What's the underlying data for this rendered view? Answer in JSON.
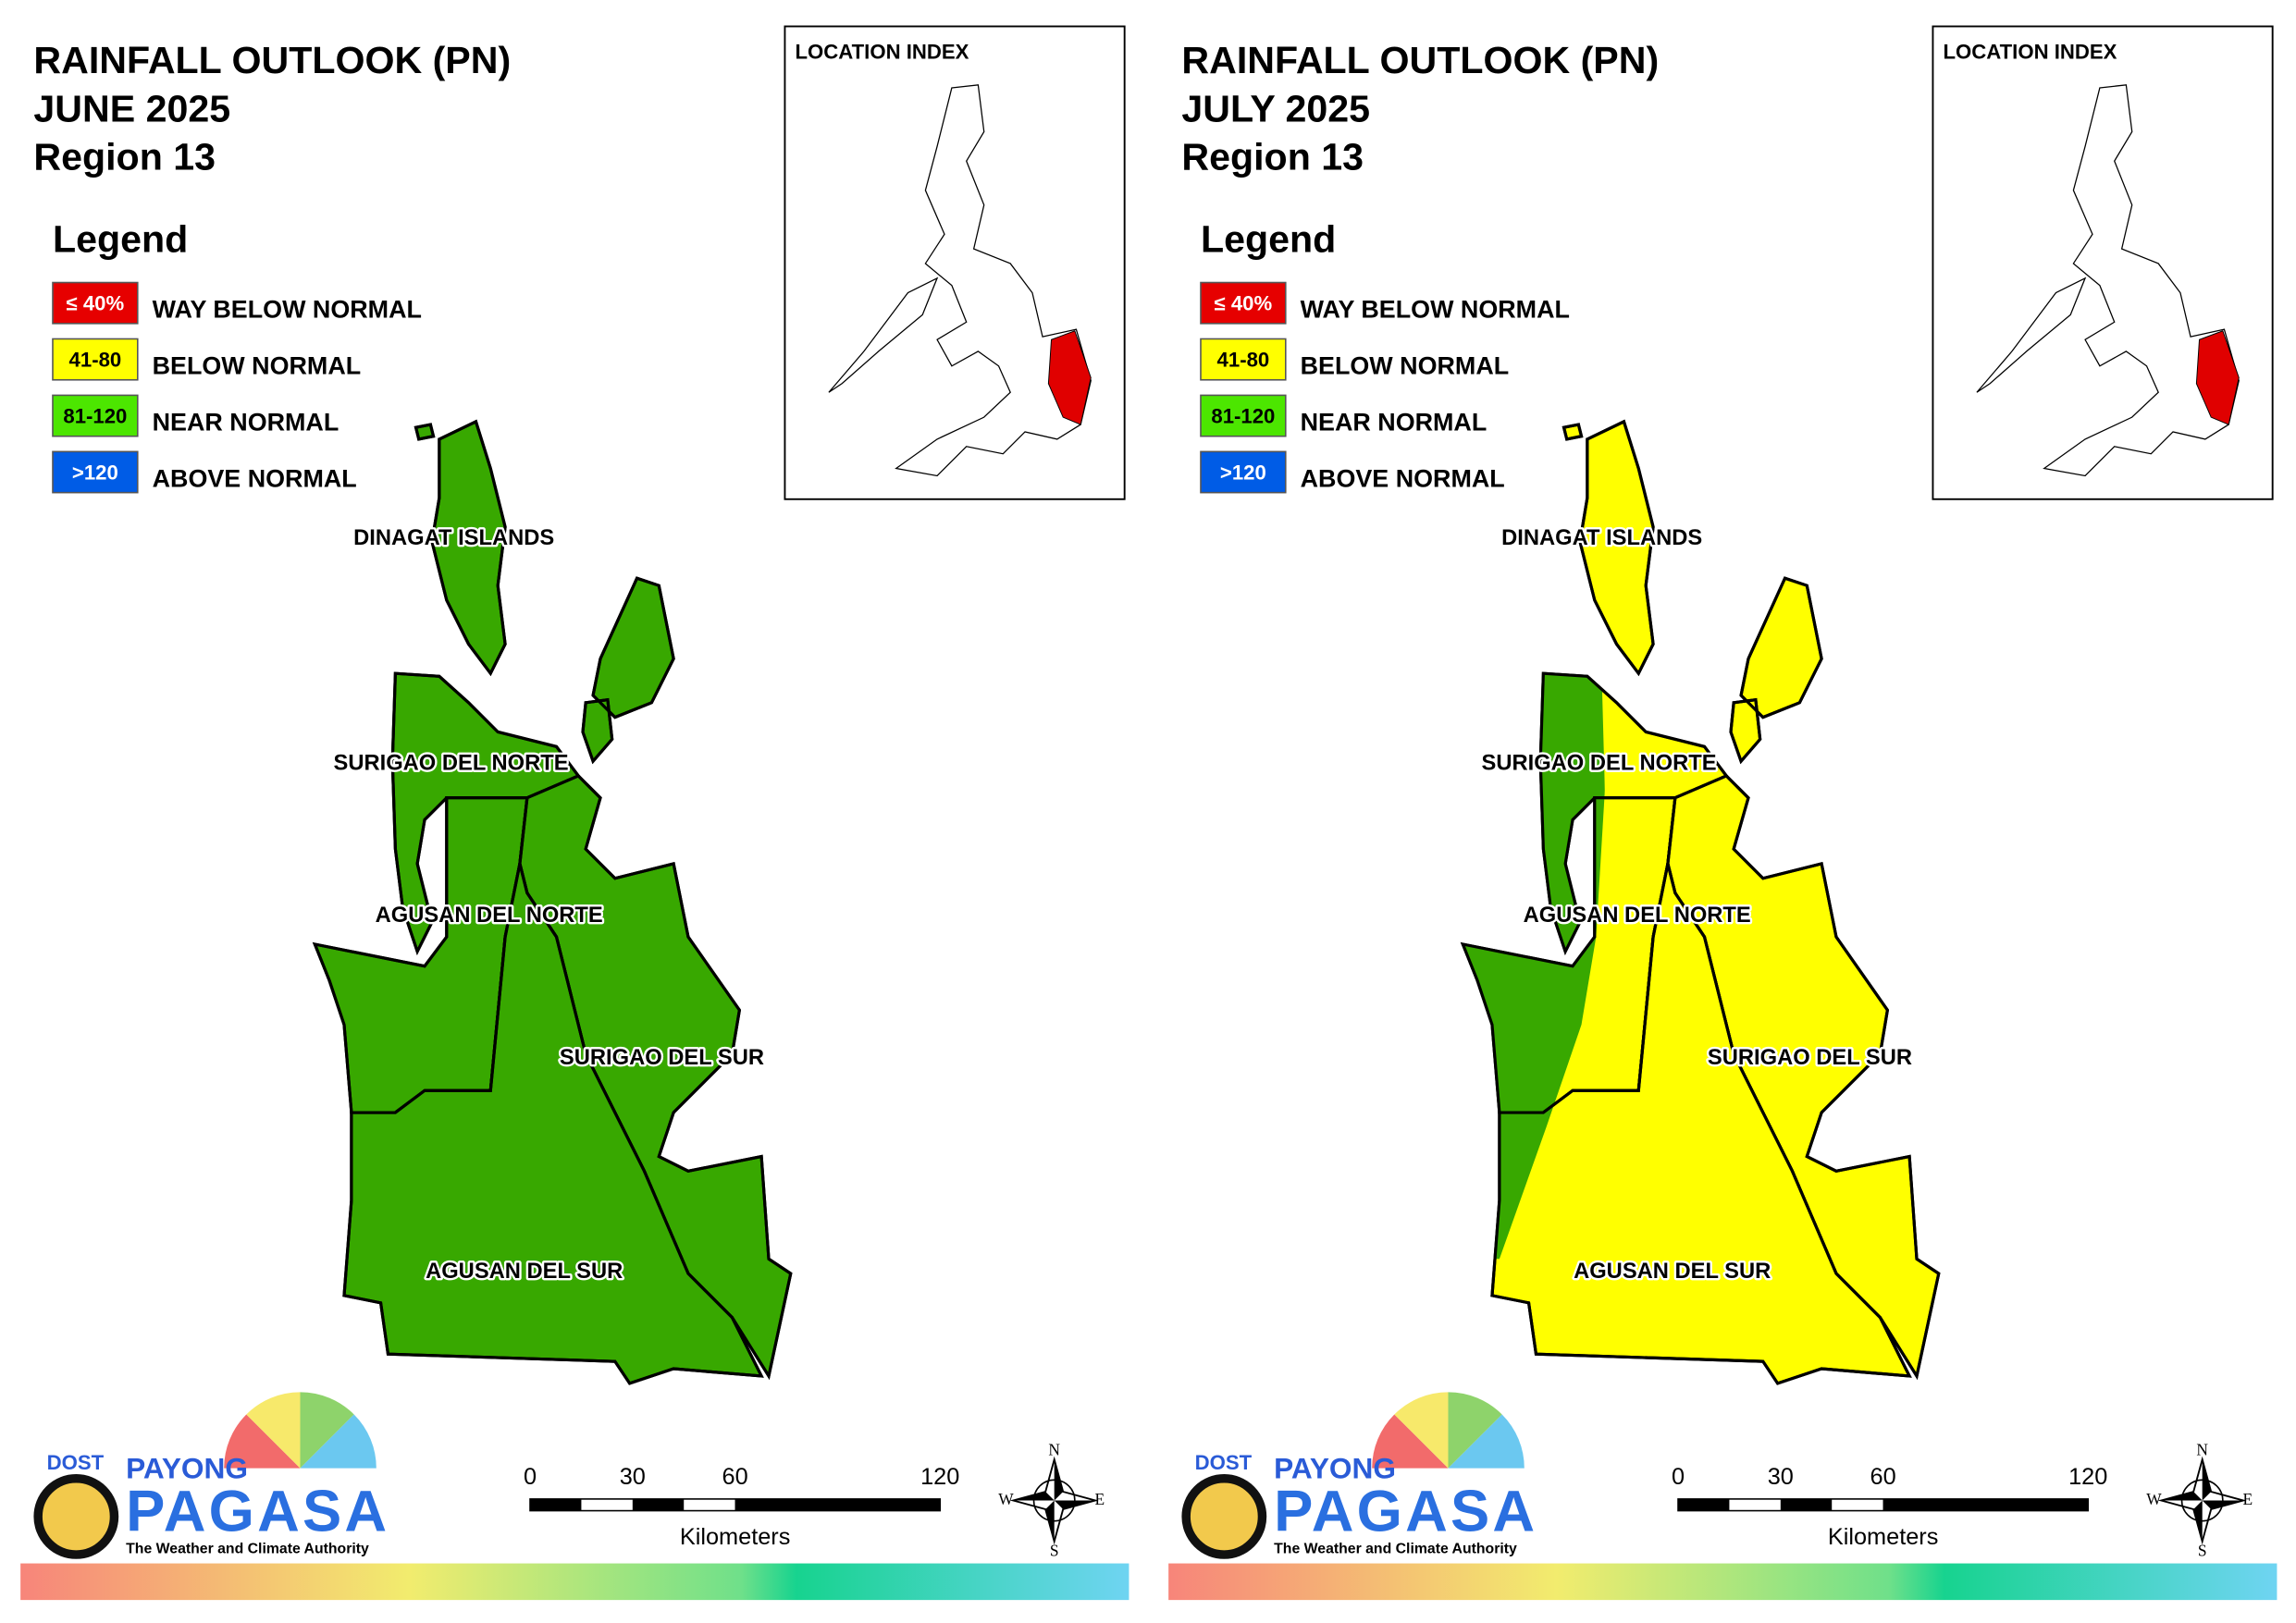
{
  "panels": [
    {
      "title": [
        "RAINFALL OUTLOOK (PN)",
        "JUNE 2025",
        "Region 13"
      ],
      "location_index": "LOCATION INDEX",
      "legend": {
        "title": "Legend",
        "items": [
          {
            "range": "≤ 40%",
            "label": "WAY BELOW NORMAL",
            "color": "#e60000"
          },
          {
            "range": "41-80",
            "label": "BELOW NORMAL",
            "color": "#ffff00"
          },
          {
            "range": "81-120",
            "label": "NEAR NORMAL",
            "color": "#4ce600"
          },
          {
            "range": ">120",
            "label": "ABOVE NORMAL",
            "color": "#005ce6"
          }
        ]
      },
      "provinces": [
        {
          "name": "DINAGAT ISLANDS",
          "colors": [
            "#38a800"
          ]
        },
        {
          "name": "SURIGAO DEL NORTE",
          "colors": [
            "#38a800"
          ]
        },
        {
          "name": "AGUSAN DEL NORTE",
          "colors": [
            "#38a800"
          ]
        },
        {
          "name": "SURIGAO DEL SUR",
          "colors": [
            "#38a800"
          ]
        },
        {
          "name": "AGUSAN DEL SUR",
          "colors": [
            "#38a800"
          ]
        }
      ],
      "scale": {
        "ticks": [
          0,
          30,
          60,
          120
        ],
        "unit": "Kilometers"
      }
    },
    {
      "title": [
        "RAINFALL OUTLOOK (PN)",
        "JULY 2025",
        "Region 13"
      ],
      "location_index": "LOCATION INDEX",
      "legend": {
        "title": "Legend",
        "items": [
          {
            "range": "≤ 40%",
            "label": "WAY BELOW NORMAL",
            "color": "#e60000"
          },
          {
            "range": "41-80",
            "label": "BELOW NORMAL",
            "color": "#ffff00"
          },
          {
            "range": "81-120",
            "label": "NEAR NORMAL",
            "color": "#4ce600"
          },
          {
            "range": ">120",
            "label": "ABOVE NORMAL",
            "color": "#005ce6"
          }
        ]
      },
      "provinces": [
        {
          "name": "DINAGAT ISLANDS",
          "colors": [
            "#ffff00"
          ]
        },
        {
          "name": "SURIGAO DEL NORTE",
          "colors": [
            "#ffff00",
            "#38a800"
          ]
        },
        {
          "name": "AGUSAN DEL NORTE",
          "colors": [
            "#ffff00",
            "#38a800"
          ]
        },
        {
          "name": "SURIGAO DEL SUR",
          "colors": [
            "#ffff00"
          ]
        },
        {
          "name": "AGUSAN DEL SUR",
          "colors": [
            "#ffff00",
            "#38a800"
          ]
        }
      ],
      "scale": {
        "ticks": [
          0,
          30,
          60,
          120
        ],
        "unit": "Kilometers"
      }
    }
  ],
  "logo": {
    "agency": "DOST",
    "brand_top": "PAYONG",
    "brand": "PAGASA",
    "tagline": "The Weather and Climate Authority"
  },
  "compass": {
    "n": "N",
    "e": "E",
    "s": "S",
    "w": "W"
  }
}
